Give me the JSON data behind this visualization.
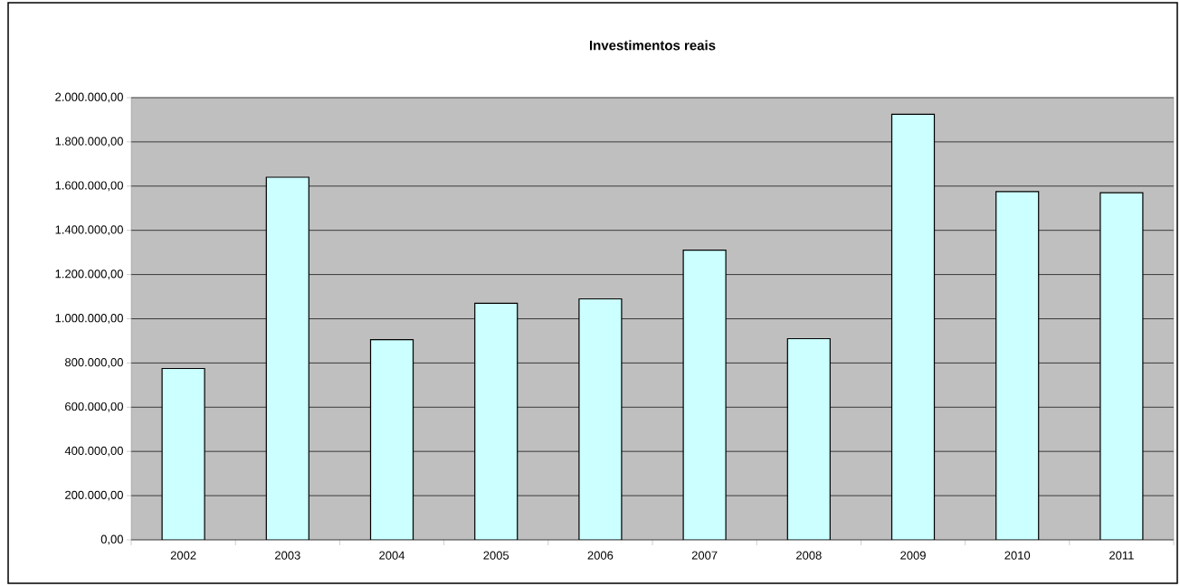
{
  "chart_data": {
    "type": "bar",
    "title": "Investimentos reais",
    "categories": [
      "2002",
      "2003",
      "2004",
      "2005",
      "2006",
      "2007",
      "2008",
      "2009",
      "2010",
      "2011"
    ],
    "values": [
      775000,
      1640000,
      905000,
      1070000,
      1090000,
      1310000,
      910000,
      1925000,
      1575000,
      1570000
    ],
    "color": "#ccffff",
    "ylim": [
      0,
      2000000
    ],
    "yticks": [
      {
        "value": 0,
        "label": "0,00"
      },
      {
        "value": 200000,
        "label": "200.000,00"
      },
      {
        "value": 400000,
        "label": "400.000,00"
      },
      {
        "value": 600000,
        "label": "600.000,00"
      },
      {
        "value": 800000,
        "label": "800.000,00"
      },
      {
        "value": 1000000,
        "label": "1.000.000,00"
      },
      {
        "value": 1200000,
        "label": "1.200.000,00"
      },
      {
        "value": 1400000,
        "label": "1.400.000,00"
      },
      {
        "value": 1600000,
        "label": "1.600.000,00"
      },
      {
        "value": 1800000,
        "label": "1.800.000,00"
      },
      {
        "value": 2000000,
        "label": "2.000.000,00"
      }
    ],
    "grid": "y"
  }
}
